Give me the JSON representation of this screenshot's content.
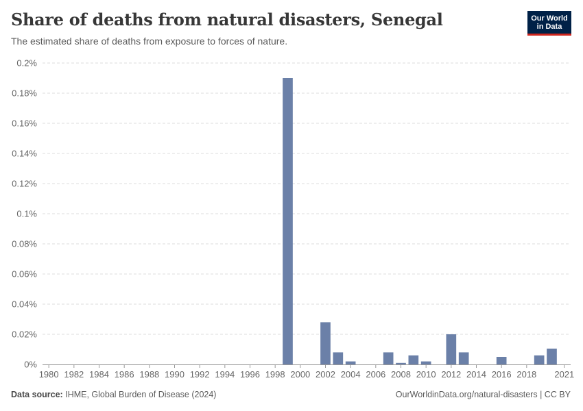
{
  "header": {
    "title": "Share of deaths from natural disasters, Senegal",
    "subtitle": "The estimated share of deaths from exposure to forces of nature."
  },
  "logo": {
    "line1": "Our World",
    "line2": "in Data"
  },
  "footer": {
    "source_label": "Data source:",
    "source_text": "IHME, Global Burden of Disease (2024)",
    "right_text": "OurWorldinData.org/natural-disasters | CC BY"
  },
  "colors": {
    "bar": "#6b80a8",
    "grid": "#dddddd",
    "axis": "#999999"
  },
  "chart_data": {
    "type": "bar",
    "title": "Share of deaths from natural disasters, Senegal",
    "xlabel": "",
    "ylabel": "",
    "unit": "%",
    "ylim": [
      0,
      0.2
    ],
    "yticks": [
      0,
      0.02,
      0.04,
      0.06,
      0.08,
      0.1,
      0.12,
      0.14,
      0.16,
      0.18,
      0.2
    ],
    "ytick_labels": [
      "0%",
      "0.02%",
      "0.04%",
      "0.06%",
      "0.08%",
      "0.1%",
      "0.12%",
      "0.14%",
      "0.16%",
      "0.18%",
      "0.2%"
    ],
    "xrange": [
      1980,
      2021
    ],
    "xticks": [
      1980,
      1982,
      1984,
      1986,
      1988,
      1990,
      1992,
      1994,
      1996,
      1998,
      2000,
      2002,
      2004,
      2006,
      2008,
      2010,
      2012,
      2014,
      2016,
      2018,
      2021
    ],
    "series": [
      {
        "name": "Senegal",
        "x": [
          1999,
          2002,
          2003,
          2004,
          2007,
          2008,
          2009,
          2010,
          2012,
          2013,
          2016,
          2019,
          2020
        ],
        "values": [
          0.19,
          0.028,
          0.008,
          0.002,
          0.008,
          0.001,
          0.006,
          0.002,
          0.02,
          0.008,
          0.005,
          0.006,
          0.0105
        ]
      }
    ],
    "grid": true
  }
}
